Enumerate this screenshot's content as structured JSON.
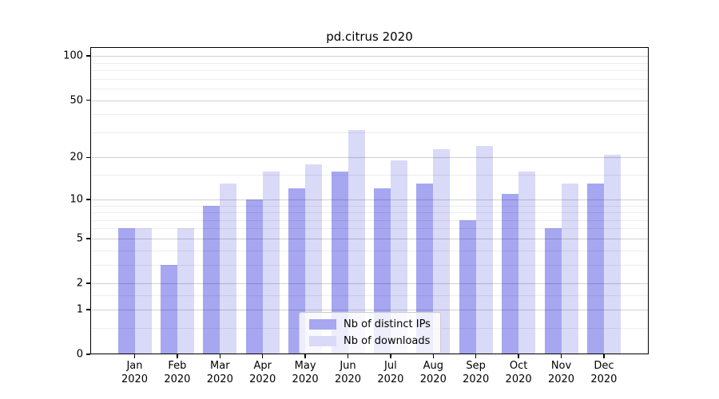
{
  "chart_data": {
    "type": "bar",
    "title": "pd.citrus 2020",
    "categories": [
      "Jan 2020",
      "Feb 2020",
      "Mar 2020",
      "Apr 2020",
      "May 2020",
      "Jun 2020",
      "Jul 2020",
      "Aug 2020",
      "Sep 2020",
      "Oct 2020",
      "Nov 2020",
      "Dec 2020"
    ],
    "series": [
      {
        "name": "Nb of distinct IPs",
        "color": "#a6a6f1",
        "values": [
          6,
          3,
          9,
          10,
          12,
          16,
          12,
          13,
          7,
          11,
          6,
          13
        ]
      },
      {
        "name": "Nb of downloads",
        "color": "#d9d9f8",
        "values": [
          6,
          6,
          13,
          16,
          18,
          31,
          19,
          23,
          24,
          16,
          13,
          21
        ]
      }
    ],
    "xlabel": "",
    "ylabel": "",
    "yscale": "log1p",
    "ylim": [
      0,
      115
    ],
    "yticks": [
      0,
      1,
      2,
      5,
      10,
      20,
      50,
      100
    ],
    "yticks_minor": [
      0.5,
      1.5,
      3,
      4,
      6,
      7,
      8,
      9,
      15,
      30,
      40,
      60,
      70,
      80,
      90
    ],
    "grid": true,
    "legend_position": "lower center"
  },
  "colors": {
    "spine": "#000000",
    "grid_major": "rgba(0,0,0,0.18)",
    "grid_minor": "rgba(0,0,0,0.07)",
    "legend_border": "#cccccc"
  }
}
